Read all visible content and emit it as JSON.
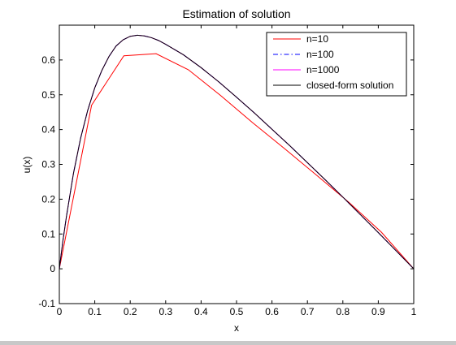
{
  "chart_data": {
    "type": "line",
    "title": "Estimation of solution",
    "xlabel": "x",
    "ylabel": "u(x)",
    "xlim": [
      0,
      1
    ],
    "ylim": [
      -0.1,
      0.7
    ],
    "xticks": [
      0,
      0.1,
      0.2,
      0.3,
      0.4,
      0.5,
      0.6,
      0.7,
      0.8,
      0.9,
      1
    ],
    "xtick_labels": [
      "0",
      "0.1",
      "0.2",
      "0.3",
      "0.4",
      "0.5",
      "0.6",
      "0.7",
      "0.8",
      "0.9",
      "1"
    ],
    "yticks": [
      -0.1,
      0,
      0.1,
      0.2,
      0.3,
      0.4,
      0.5,
      0.6
    ],
    "ytick_labels": [
      "-0.1",
      "0",
      "0.1",
      "0.2",
      "0.3",
      "0.4",
      "0.5",
      "0.6"
    ],
    "grid": false,
    "legend_position": "top-right",
    "series": [
      {
        "name": "n=10",
        "color": "#ff0000",
        "style": "solid",
        "x": [
          0,
          0.091,
          0.182,
          0.273,
          0.364,
          0.455,
          0.545,
          0.636,
          0.727,
          0.818,
          0.909,
          1
        ],
        "y": [
          0,
          0.47,
          0.612,
          0.618,
          0.572,
          0.498,
          0.42,
          0.345,
          0.268,
          0.19,
          0.105,
          0
        ]
      },
      {
        "name": "n=100",
        "color": "#0000ff",
        "style": "dashdot",
        "x": [
          0,
          0.01,
          0.02,
          0.04,
          0.06,
          0.08,
          0.1,
          0.12,
          0.14,
          0.16,
          0.18,
          0.2,
          0.22,
          0.24,
          0.26,
          0.28,
          0.3,
          0.35,
          0.4,
          0.45,
          0.5,
          0.55,
          0.6,
          0.65,
          0.7,
          0.75,
          0.8,
          0.85,
          0.9,
          0.95,
          1
        ],
        "y": [
          0,
          0.08,
          0.15,
          0.275,
          0.375,
          0.455,
          0.52,
          0.57,
          0.61,
          0.64,
          0.658,
          0.668,
          0.671,
          0.669,
          0.664,
          0.656,
          0.645,
          0.615,
          0.578,
          0.537,
          0.493,
          0.448,
          0.401,
          0.354,
          0.305,
          0.256,
          0.206,
          0.155,
          0.104,
          0.052,
          0
        ]
      },
      {
        "name": "n=1000",
        "color": "#ff00ff",
        "style": "solid",
        "x": [
          0,
          0.01,
          0.02,
          0.04,
          0.06,
          0.08,
          0.1,
          0.12,
          0.14,
          0.16,
          0.18,
          0.2,
          0.22,
          0.24,
          0.26,
          0.28,
          0.3,
          0.35,
          0.4,
          0.45,
          0.5,
          0.55,
          0.6,
          0.65,
          0.7,
          0.75,
          0.8,
          0.85,
          0.9,
          0.95,
          1
        ],
        "y": [
          0,
          0.08,
          0.15,
          0.275,
          0.375,
          0.455,
          0.52,
          0.57,
          0.61,
          0.64,
          0.658,
          0.668,
          0.671,
          0.669,
          0.664,
          0.656,
          0.645,
          0.615,
          0.578,
          0.537,
          0.493,
          0.448,
          0.401,
          0.354,
          0.305,
          0.256,
          0.206,
          0.155,
          0.104,
          0.052,
          0
        ]
      },
      {
        "name": "closed-form solution",
        "color": "#000000",
        "style": "solid",
        "x": [
          0,
          0.01,
          0.02,
          0.04,
          0.06,
          0.08,
          0.1,
          0.12,
          0.14,
          0.16,
          0.18,
          0.2,
          0.22,
          0.24,
          0.26,
          0.28,
          0.3,
          0.35,
          0.4,
          0.45,
          0.5,
          0.55,
          0.6,
          0.65,
          0.7,
          0.75,
          0.8,
          0.85,
          0.9,
          0.95,
          1
        ],
        "y": [
          0,
          0.08,
          0.15,
          0.275,
          0.375,
          0.455,
          0.52,
          0.57,
          0.61,
          0.64,
          0.658,
          0.668,
          0.671,
          0.669,
          0.664,
          0.656,
          0.645,
          0.615,
          0.578,
          0.537,
          0.493,
          0.448,
          0.401,
          0.354,
          0.305,
          0.256,
          0.206,
          0.155,
          0.104,
          0.052,
          0
        ]
      }
    ]
  }
}
